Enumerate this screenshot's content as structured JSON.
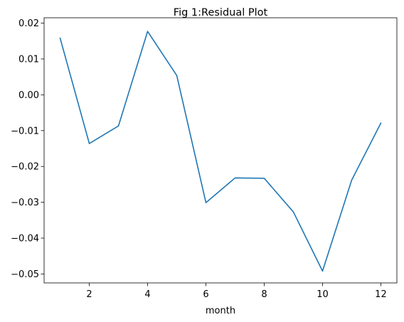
{
  "chart_data": {
    "type": "line",
    "title": "Fig 1:Residual Plot",
    "xlabel": "month",
    "ylabel": "",
    "xlim": [
      0.45,
      12.55
    ],
    "ylim": [
      -0.0525,
      0.0215
    ],
    "grid": false,
    "legend": "none",
    "colors": {
      "line": "#1f77b4",
      "axes": "#000000",
      "background": "#ffffff"
    },
    "x_ticks": [
      2,
      4,
      6,
      8,
      10,
      12
    ],
    "x_tick_labels": [
      "2",
      "4",
      "6",
      "8",
      "10",
      "12"
    ],
    "y_ticks": [
      0.02,
      0.01,
      0.0,
      -0.01,
      -0.02,
      -0.03,
      -0.04,
      -0.05
    ],
    "y_tick_labels": [
      "0.02",
      "0.01",
      "0.00",
      "−0.01",
      "−0.02",
      "−0.03",
      "−0.04",
      "−0.05"
    ],
    "series": [
      {
        "x": [
          1,
          2,
          3,
          4,
          5,
          6,
          7,
          8,
          9,
          10,
          11,
          12
        ],
        "values": [
          0.0158,
          -0.0136,
          -0.0087,
          0.0177,
          0.0054,
          -0.0301,
          -0.0232,
          -0.0233,
          -0.0327,
          -0.0492,
          -0.0238,
          -0.0079
        ]
      }
    ]
  }
}
